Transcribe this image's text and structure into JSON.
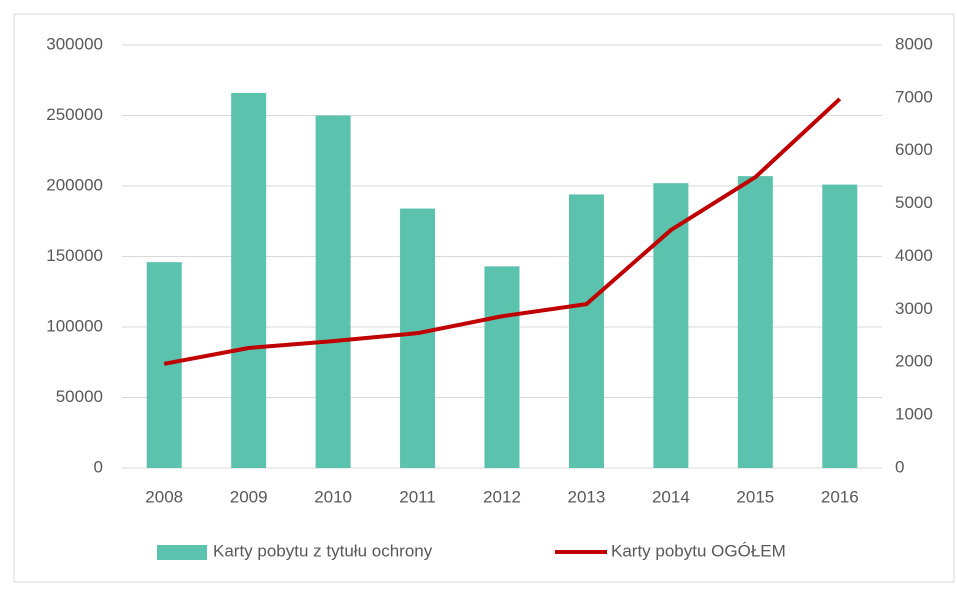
{
  "chart_data": {
    "type": "bar-line",
    "categories": [
      "2008",
      "2009",
      "2010",
      "2011",
      "2012",
      "2013",
      "2014",
      "2015",
      "2016"
    ],
    "series": [
      {
        "name": "Karty pobytu z tytułu ochrony",
        "type": "bar",
        "color": "#5bc2ae",
        "axis": "y",
        "values": [
          146000,
          266000,
          250000,
          184000,
          143000,
          194000,
          202000,
          207000,
          201000
        ]
      },
      {
        "name": "Karty pobytu OGÓŁEM",
        "type": "line",
        "color": "#c00000",
        "axis": "y2",
        "values": [
          1970,
          2270,
          2400,
          2550,
          2870,
          3100,
          4500,
          5500,
          6980
        ]
      }
    ],
    "ylim": [
      0,
      300000
    ],
    "yticks": [
      0,
      50000,
      100000,
      150000,
      200000,
      250000,
      300000
    ],
    "y2lim": [
      0,
      8000
    ],
    "y2ticks": [
      0,
      1000,
      2000,
      3000,
      4000,
      5000,
      6000,
      7000,
      8000
    ],
    "grid": true,
    "legend": "bottom"
  }
}
